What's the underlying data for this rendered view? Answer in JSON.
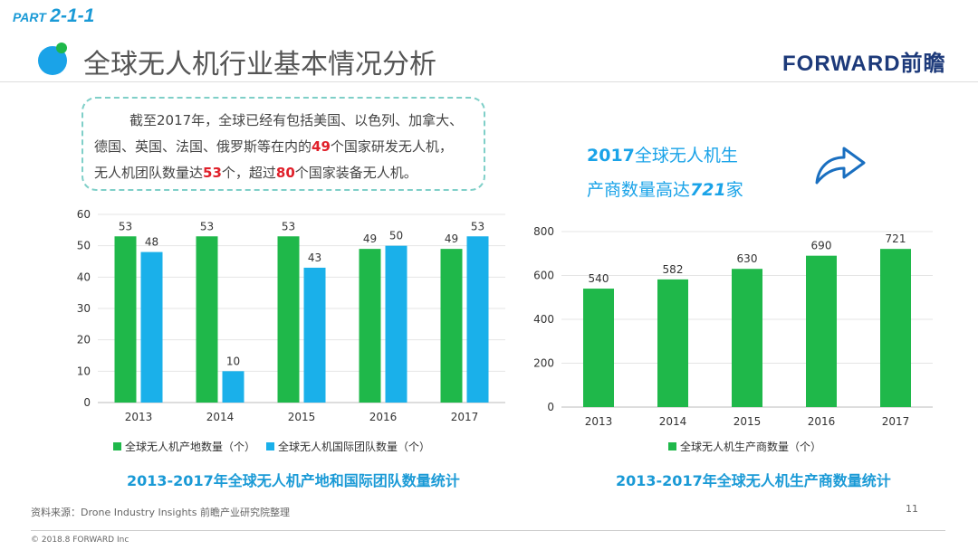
{
  "header": {
    "part_label": "PART",
    "part_number": "2-1-1",
    "title": "全球无人机行业基本情况分析",
    "logo_text": "FORWARD前瞻"
  },
  "summary": {
    "line1": "截至2017年，全球已经有包括美国、以色列、加拿大、",
    "line2_a": "德国、英国、法国、俄罗斯等在内的",
    "num1": "49",
    "line2_b": "个国家研发无人机，",
    "line3_a": "无人机团队数量达",
    "num2": "53",
    "line3_b": "个，超过",
    "num3": "80",
    "line3_c": "个国家装备无人机。"
  },
  "callout": {
    "year": "2017",
    "text1": "全球无人机生",
    "text2": "产商数量高达",
    "num": "721",
    "unit": "家",
    "icon": "curved-arrow-right-icon"
  },
  "colors": {
    "green": "#1fb84a",
    "blue": "#1ab0ea",
    "title_blue": "#1a9ad6"
  },
  "chart_data": [
    {
      "type": "bar",
      "title": "2013-2017年全球无人机产地和国际团队数量统计",
      "categories": [
        "2013",
        "2014",
        "2015",
        "2016",
        "2017"
      ],
      "series": [
        {
          "name": "全球无人机产地数量（个）",
          "values": [
            53,
            53,
            53,
            49,
            49
          ],
          "color": "#1fb84a"
        },
        {
          "name": "全球无人机国际团队数量（个）",
          "values": [
            48,
            10,
            43,
            50,
            53
          ],
          "color": "#1ab0ea"
        }
      ],
      "ylim": [
        0,
        60
      ],
      "yticks": [
        0,
        10,
        20,
        30,
        40,
        50,
        60
      ],
      "grid": true,
      "legend": "bottom"
    },
    {
      "type": "bar",
      "title": "2013-2017年全球无人机生产商数量统计",
      "categories": [
        "2013",
        "2014",
        "2015",
        "2016",
        "2017"
      ],
      "series": [
        {
          "name": "全球无人机生产商数量（个）",
          "values": [
            540,
            582,
            630,
            690,
            721
          ],
          "color": "#1fb84a"
        }
      ],
      "ylim": [
        0,
        800
      ],
      "yticks": [
        0,
        200,
        400,
        600,
        800
      ],
      "grid": true,
      "legend": "bottom"
    }
  ],
  "footer": {
    "source": "资料来源：Drone Industry Insights 前瞻产业研究院整理",
    "page": "11",
    "copyright": "© 2018.8 FORWARD Inc"
  }
}
